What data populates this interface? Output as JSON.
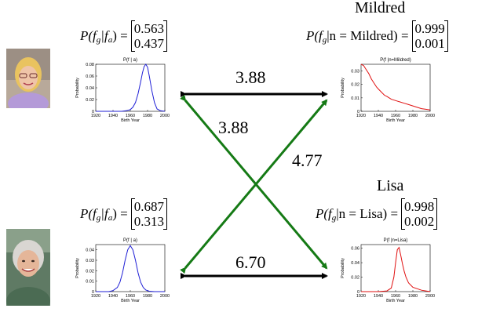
{
  "names": {
    "top_right": "Mildred",
    "bottom_right": "Lisa"
  },
  "formulas": {
    "top_left": {
      "lhs": "P(f",
      "sub1": "g",
      "mid": "|f",
      "sub2": "a",
      "rhs": ") =",
      "values": [
        "0.563",
        "0.437"
      ]
    },
    "top_right": {
      "lhs": "P(f",
      "sub1": "g",
      "mid": "|n = Mildred) =",
      "values": [
        "0.999",
        "0.001"
      ]
    },
    "bottom_left": {
      "lhs": "P(f",
      "sub1": "g",
      "mid": "|f",
      "sub2": "a",
      "rhs": ") =",
      "values": [
        "0.687",
        "0.313"
      ]
    },
    "bottom_right": {
      "lhs": "P(f",
      "sub1": "g",
      "mid": "|n = Lisa) =",
      "values": [
        "0.998",
        "0.002"
      ]
    }
  },
  "edges": {
    "top_horizontal": "3.88",
    "diag_from_top_right": "3.88",
    "diag_from_bottom_right": "4.77",
    "bottom_horizontal": "6.70"
  },
  "colors": {
    "blue_curve": "#1f1fd6",
    "red_curve": "#e01010",
    "green_arrow": "#157a15",
    "black_arrow": "#000000"
  },
  "chart_data": [
    {
      "id": "top_left",
      "type": "line",
      "color": "blue",
      "title": "P(f | a)",
      "title_sub": "g",
      "xlabel": "Birth Year",
      "ylabel": "Probability",
      "xlim": [
        1920,
        2000
      ],
      "ylim": [
        0,
        0.08
      ],
      "xticks": [
        "1920",
        "1940",
        "1960",
        "1980",
        "2000"
      ],
      "yticks": [
        "0",
        "0.02",
        "0.04",
        "0.06",
        "0.08"
      ],
      "x": [
        1920,
        1950,
        1955,
        1960,
        1963,
        1966,
        1969,
        1972,
        1974,
        1976,
        1978,
        1980,
        1982,
        1985,
        1988,
        1991,
        1995,
        2000
      ],
      "y": [
        0,
        0,
        0.001,
        0.003,
        0.007,
        0.015,
        0.03,
        0.05,
        0.065,
        0.076,
        0.08,
        0.075,
        0.06,
        0.035,
        0.015,
        0.004,
        0.001,
        0
      ]
    },
    {
      "id": "top_right",
      "type": "line",
      "color": "red",
      "title": "P(f |n=Mildred)",
      "title_sub": "g",
      "xlabel": "Birth Year",
      "ylabel": "Probability",
      "xlim": [
        1920,
        2000
      ],
      "ylim": [
        0,
        0.035
      ],
      "xticks": [
        "1920",
        "1940",
        "1960",
        "1980",
        "2000"
      ],
      "yticks": [
        "0",
        "0.01",
        "0.02",
        "0.03"
      ],
      "x": [
        1920,
        1923,
        1926,
        1929,
        1932,
        1935,
        1938,
        1941,
        1944,
        1947,
        1950,
        1955,
        1960,
        1965,
        1970,
        1975,
        1980,
        1985,
        1990,
        1995,
        2000
      ],
      "y": [
        0.035,
        0.034,
        0.031,
        0.028,
        0.024,
        0.021,
        0.018,
        0.016,
        0.014,
        0.012,
        0.011,
        0.009,
        0.008,
        0.007,
        0.006,
        0.005,
        0.004,
        0.003,
        0.002,
        0.0015,
        0.001
      ]
    },
    {
      "id": "bottom_left",
      "type": "line",
      "color": "blue",
      "title": "P(f | a)",
      "title_sub": "g",
      "xlabel": "Birth Year",
      "ylabel": "Probability",
      "xlim": [
        1920,
        2000
      ],
      "ylim": [
        0,
        0.045
      ],
      "xticks": [
        "1920",
        "1940",
        "1960",
        "1980",
        "2000"
      ],
      "yticks": [
        "0",
        "0.01",
        "0.02",
        "0.03",
        "0.04"
      ],
      "x": [
        1920,
        1935,
        1940,
        1945,
        1948,
        1951,
        1954,
        1957,
        1960,
        1963,
        1966,
        1969,
        1972,
        1975,
        1978,
        1982,
        1988,
        2000
      ],
      "y": [
        0,
        0,
        0.001,
        0.004,
        0.009,
        0.018,
        0.03,
        0.04,
        0.044,
        0.04,
        0.03,
        0.018,
        0.009,
        0.004,
        0.0015,
        0.0004,
        0,
        0
      ]
    },
    {
      "id": "bottom_right",
      "type": "line",
      "color": "red",
      "title": "P(f |n=Lisa)",
      "title_sub": "g",
      "xlabel": "Birth Year",
      "ylabel": "Probability",
      "xlim": [
        1920,
        2000
      ],
      "ylim": [
        0,
        0.065
      ],
      "xticks": [
        "1920",
        "1940",
        "1960",
        "1980",
        "2000"
      ],
      "yticks": [
        "0",
        "0.02",
        "0.04",
        "0.06"
      ],
      "x": [
        1920,
        1940,
        1950,
        1955,
        1958,
        1960,
        1962,
        1964,
        1966,
        1968,
        1970,
        1972,
        1975,
        1980,
        1985,
        1990,
        1995,
        2000
      ],
      "y": [
        0,
        0,
        0.001,
        0.005,
        0.02,
        0.04,
        0.058,
        0.061,
        0.05,
        0.038,
        0.028,
        0.02,
        0.012,
        0.006,
        0.004,
        0.002,
        0.001,
        0
      ]
    }
  ]
}
